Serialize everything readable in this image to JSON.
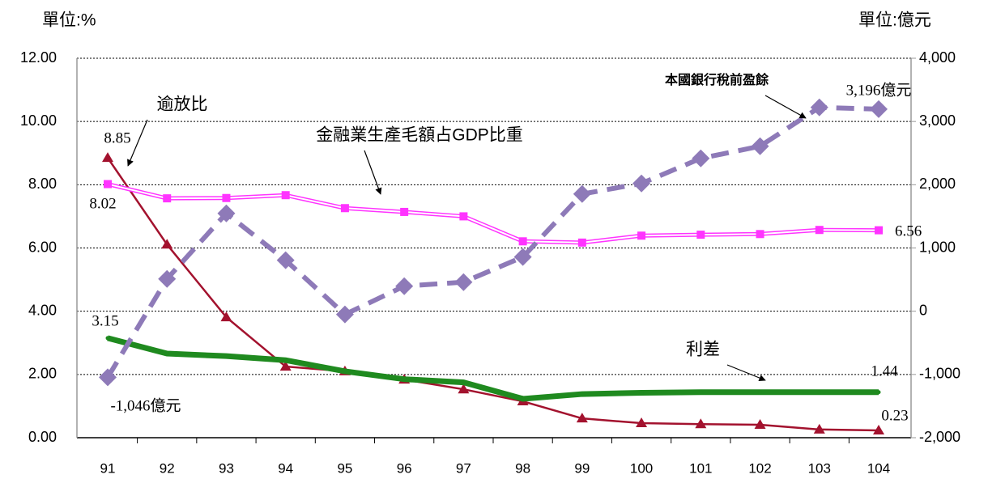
{
  "chart_data": {
    "type": "line",
    "unit_left": "單位:%",
    "unit_right": "單位:億元",
    "annotations": [
      "逾放比",
      "金融業生產毛額占GDP比重",
      "本國銀行稅前盈餘",
      "利差"
    ],
    "categories": [
      "91",
      "92",
      "93",
      "94",
      "95",
      "96",
      "97",
      "98",
      "99",
      "100",
      "101",
      "102",
      "103",
      "104"
    ],
    "series": [
      {
        "name": "逾放比",
        "color": "#a3122e",
        "marker": "triangle",
        "values": [
          8.85,
          6.11,
          3.81,
          2.25,
          2.1,
          1.84,
          1.53,
          1.15,
          0.61,
          0.46,
          0.43,
          0.41,
          0.26,
          0.23
        ],
        "value_labels": [
          "8.85",
          null,
          null,
          null,
          null,
          null,
          null,
          null,
          null,
          null,
          null,
          null,
          null,
          "0.23"
        ]
      },
      {
        "name": "金融業生產毛額占GDP比重",
        "color": "#ff33ff",
        "marker": "square",
        "values": [
          8.02,
          7.57,
          7.58,
          7.67,
          7.26,
          7.14,
          7.0,
          6.21,
          6.17,
          6.39,
          6.42,
          6.44,
          6.57,
          6.56
        ],
        "value_labels": [
          "8.02",
          null,
          null,
          null,
          null,
          null,
          null,
          null,
          null,
          null,
          null,
          null,
          null,
          "6.56"
        ]
      },
      {
        "name": "利差",
        "color": "#1f8a1f",
        "marker": "thick",
        "values": [
          3.15,
          2.66,
          2.58,
          2.45,
          2.1,
          1.85,
          1.75,
          1.23,
          1.38,
          1.42,
          1.44,
          1.44,
          1.44,
          1.44
        ],
        "value_labels": [
          "3.15",
          null,
          null,
          null,
          null,
          null,
          null,
          null,
          null,
          null,
          null,
          null,
          null,
          "1.44"
        ]
      },
      {
        "name": "本國銀行稅前盈餘",
        "color": "#8e7ab8",
        "marker": "diamond",
        "dash": true,
        "axis": "y2",
        "values": [
          -1046,
          511,
          1547,
          806,
          -51,
          396,
          460,
          857,
          1854,
          2020,
          2417,
          2609,
          3223,
          3196
        ],
        "value_labels": [
          "-1,046億元",
          null,
          null,
          null,
          null,
          null,
          null,
          null,
          null,
          null,
          null,
          null,
          null,
          "3,196億元"
        ]
      }
    ],
    "ylim": [
      0,
      12
    ],
    "yticks": [
      {
        "value": 0,
        "label": "0.00"
      },
      {
        "value": 2,
        "label": "2.00"
      },
      {
        "value": 4,
        "label": "4.00"
      },
      {
        "value": 6,
        "label": "6.00"
      },
      {
        "value": 8,
        "label": "8.00"
      },
      {
        "value": 10,
        "label": "10.00"
      },
      {
        "value": 12,
        "label": "12.00"
      }
    ],
    "y2lim": [
      -2000,
      4000
    ],
    "y2ticks": [
      {
        "value": -2000,
        "label": "-2,000"
      },
      {
        "value": -1000,
        "label": "-1,000"
      },
      0,
      {
        "value": 1000,
        "label": "1,000"
      },
      {
        "value": 2000,
        "label": "2,000"
      },
      {
        "value": 3000,
        "label": "3,000"
      },
      {
        "value": 4000,
        "label": "4,000"
      }
    ],
    "grid": true
  }
}
